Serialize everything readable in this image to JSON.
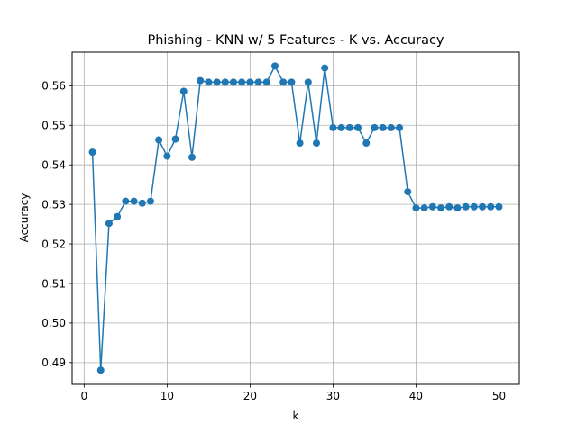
{
  "chart_data": {
    "type": "line",
    "title": "Phishing - KNN w/ 5 Features - K vs. Accuracy",
    "xlabel": "k",
    "ylabel": "Accuracy",
    "xlim": [
      -1.45,
      52.45
    ],
    "ylim": [
      0.4845,
      0.5685
    ],
    "xticks": [
      0,
      10,
      20,
      30,
      40,
      50
    ],
    "xtick_labels": [
      "0",
      "10",
      "20",
      "30",
      "40",
      "50"
    ],
    "yticks": [
      0.49,
      0.5,
      0.51,
      0.52,
      0.53,
      0.54,
      0.55,
      0.56
    ],
    "ytick_labels": [
      "0.49",
      "0.50",
      "0.51",
      "0.52",
      "0.53",
      "0.54",
      "0.55",
      "0.56"
    ],
    "grid": true,
    "color": "#1f77b4",
    "marker": "circle",
    "series": [
      {
        "x": [
          1,
          2,
          3,
          4,
          5,
          6,
          7,
          8,
          9,
          10,
          11,
          12,
          13,
          14,
          15,
          16,
          17,
          18,
          19,
          20,
          21,
          22,
          23,
          24,
          25,
          26,
          27,
          28,
          29,
          30,
          31,
          32,
          33,
          34,
          35,
          36,
          37,
          38,
          39,
          40,
          41,
          42,
          43,
          44,
          45,
          46,
          47,
          48,
          49,
          50
        ],
        "values": [
          0.5432,
          0.4881,
          0.5252,
          0.5269,
          0.5308,
          0.5308,
          0.5303,
          0.5308,
          0.5463,
          0.5422,
          0.5465,
          0.5586,
          0.5419,
          0.5613,
          0.5609,
          0.5609,
          0.5609,
          0.5609,
          0.5609,
          0.5609,
          0.5609,
          0.5609,
          0.565,
          0.5609,
          0.5609,
          0.5455,
          0.5609,
          0.5455,
          0.5645,
          0.5494,
          0.5494,
          0.5494,
          0.5494,
          0.5455,
          0.5494,
          0.5494,
          0.5494,
          0.5494,
          0.5332,
          0.5291,
          0.5291,
          0.5294,
          0.5291,
          0.5294,
          0.5291,
          0.5294,
          0.5294,
          0.5294,
          0.5294,
          0.5294
        ]
      }
    ]
  }
}
